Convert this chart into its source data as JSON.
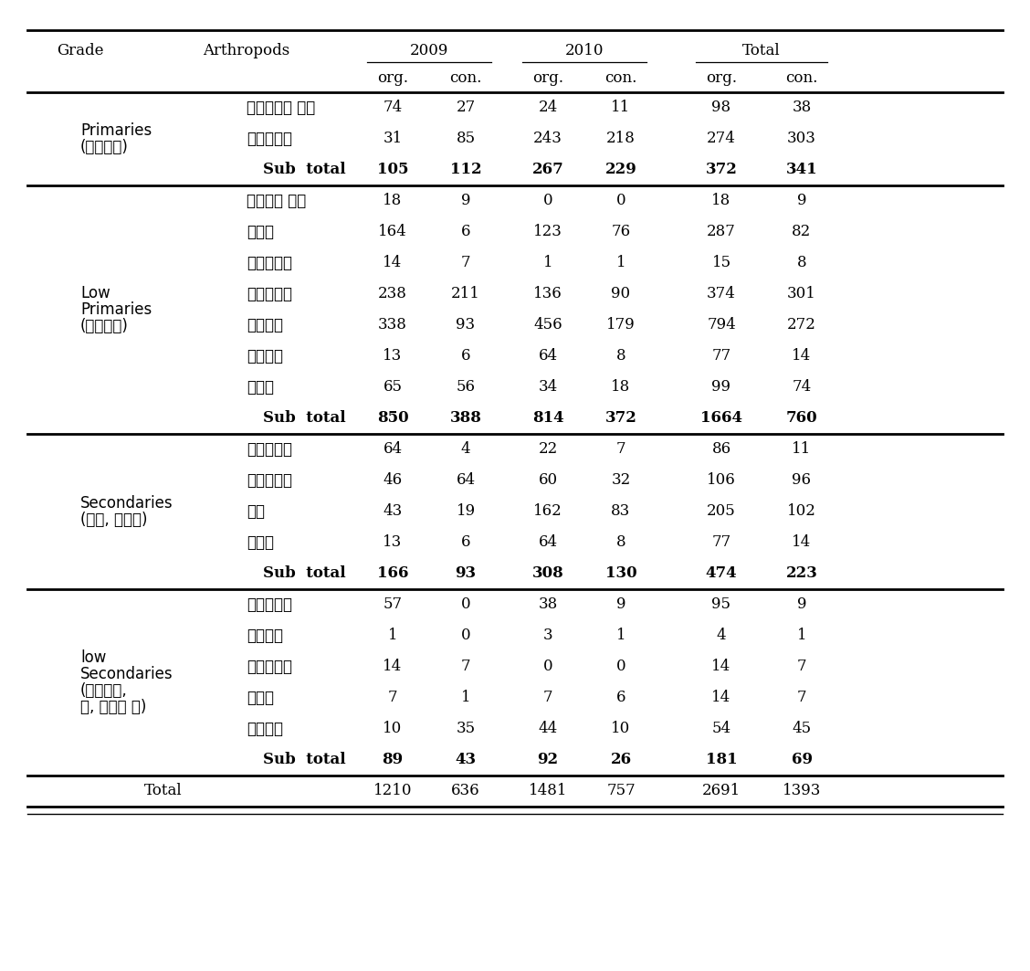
{
  "sections": [
    {
      "grade": "Primaries\n(녹색식물)",
      "rows": [
        {
          "arthropod": "딱정벌레목 유충",
          "data": [
            "74",
            "27",
            "24",
            "11",
            "98",
            "38"
          ]
        },
        {
          "arthropod": "파리목유충",
          "data": [
            "31",
            "85",
            "243",
            "218",
            "274",
            "303"
          ]
        }
      ],
      "subtotal": [
        "105",
        "112",
        "267",
        "229",
        "372",
        "341"
      ]
    },
    {
      "grade": "Low\nPrimaries\n(고사식물)",
      "rows": [
        {
          "arthropod": "풍덩이류 유충",
          "data": [
            "18",
            "9",
            "0",
            "0",
            "18",
            "9"
          ]
        },
        {
          "arthropod": "희개미",
          "data": [
            "164",
            "6",
            "123",
            "76",
            "287",
            "82"
          ]
        },
        {
          "arthropod": "파리목유충",
          "data": [
            "14",
            "7",
            "1",
            "1",
            "15",
            "8"
          ]
        },
        {
          "arthropod": "날개응애류",
          "data": [
            "238",
            "211",
            "136",
            "90",
            "374",
            "301"
          ]
        },
        {
          "arthropod": "톡토기류",
          "data": [
            "338",
            "93",
            "456",
            "179",
            "794",
            "272"
          ]
        },
        {
          "arthropod": "노래기류",
          "data": [
            "13",
            "6",
            "64",
            "8",
            "77",
            "14"
          ]
        },
        {
          "arthropod": "지렁이",
          "data": [
            "65",
            "56",
            "34",
            "18",
            "99",
            "74"
          ]
        }
      ],
      "subtotal": [
        "850",
        "388",
        "814",
        "372",
        "1664",
        "760"
      ]
    },
    {
      "grade": "Secondaries\n(기생, 포식자)",
      "rows": [
        {
          "arthropod": "전기문응애",
          "data": [
            "64",
            "4",
            "22",
            "7",
            "86",
            "11"
          ]
        },
        {
          "arthropod": "중기문응애",
          "data": [
            "46",
            "64",
            "60",
            "32",
            "106",
            "96"
          ]
        },
        {
          "arthropod": "거미",
          "data": [
            "43",
            "19",
            "162",
            "83",
            "205",
            "102"
          ]
        },
        {
          "arthropod": "노래기",
          "data": [
            "13",
            "6",
            "64",
            "8",
            "77",
            "14"
          ]
        }
      ],
      "subtotal": [
        "166",
        "93",
        "308",
        "130",
        "474",
        "223"
      ]
    },
    {
      "grade": "low\nSecondaries\n(동물사체,\n변, 탈피각 등)",
      "rows": [
        {
          "arthropod": "송장벌레류",
          "data": [
            "57",
            "0",
            "38",
            "9",
            "95",
            "9"
          ]
        },
        {
          "arthropod": "똑풍덩이",
          "data": [
            "1",
            "0",
            "3",
            "1",
            "4",
            "1"
          ]
        },
        {
          "arthropod": "파리목유충",
          "data": [
            "14",
            "7",
            "0",
            "0",
            "14",
            "7"
          ]
        },
        {
          "arthropod": "달팩이",
          "data": [
            "7",
            "1",
            "7",
            "6",
            "14",
            "7"
          ]
        },
        {
          "arthropod": "첨며느리",
          "data": [
            "10",
            "35",
            "44",
            "10",
            "54",
            "45"
          ]
        }
      ],
      "subtotal": [
        "89",
        "43",
        "92",
        "26",
        "181",
        "69"
      ]
    }
  ],
  "total_row": [
    "1210",
    "636",
    "1481",
    "757",
    "2691",
    "1393"
  ],
  "bg_color": "#ffffff"
}
